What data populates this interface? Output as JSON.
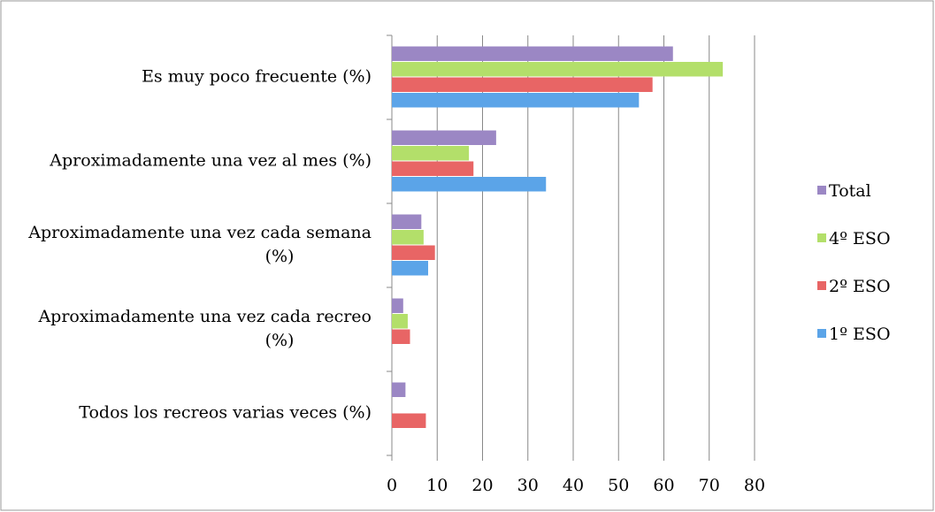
{
  "chart_data": {
    "type": "hbar",
    "categories": [
      "Es muy poco frecuente (%)",
      "Aproximadamente una vez al mes (%)",
      "Aproximadamente una vez cada semana (%)",
      "Aproximadamente una vez cada recreo (%)",
      "Todos los recreos varias veces (%)"
    ],
    "series": [
      {
        "name": "Total",
        "color": "#9b87c4",
        "values": [
          62,
          23,
          6.5,
          2.5,
          3
        ]
      },
      {
        "name": "4º ESO",
        "color": "#b3df6a",
        "values": [
          73,
          17,
          7,
          3.5,
          0
        ]
      },
      {
        "name": "2º ESO",
        "color": "#e86565",
        "values": [
          57.5,
          18,
          9.5,
          4,
          7.5
        ]
      },
      {
        "name": "1º ESO",
        "color": "#5ba4e8",
        "values": [
          54.5,
          34,
          8,
          0,
          0
        ]
      }
    ],
    "xlim": [
      0,
      80
    ],
    "xticks": [
      0,
      10,
      20,
      30,
      40,
      50,
      60,
      70,
      80
    ],
    "grid": true,
    "legend": "right"
  }
}
